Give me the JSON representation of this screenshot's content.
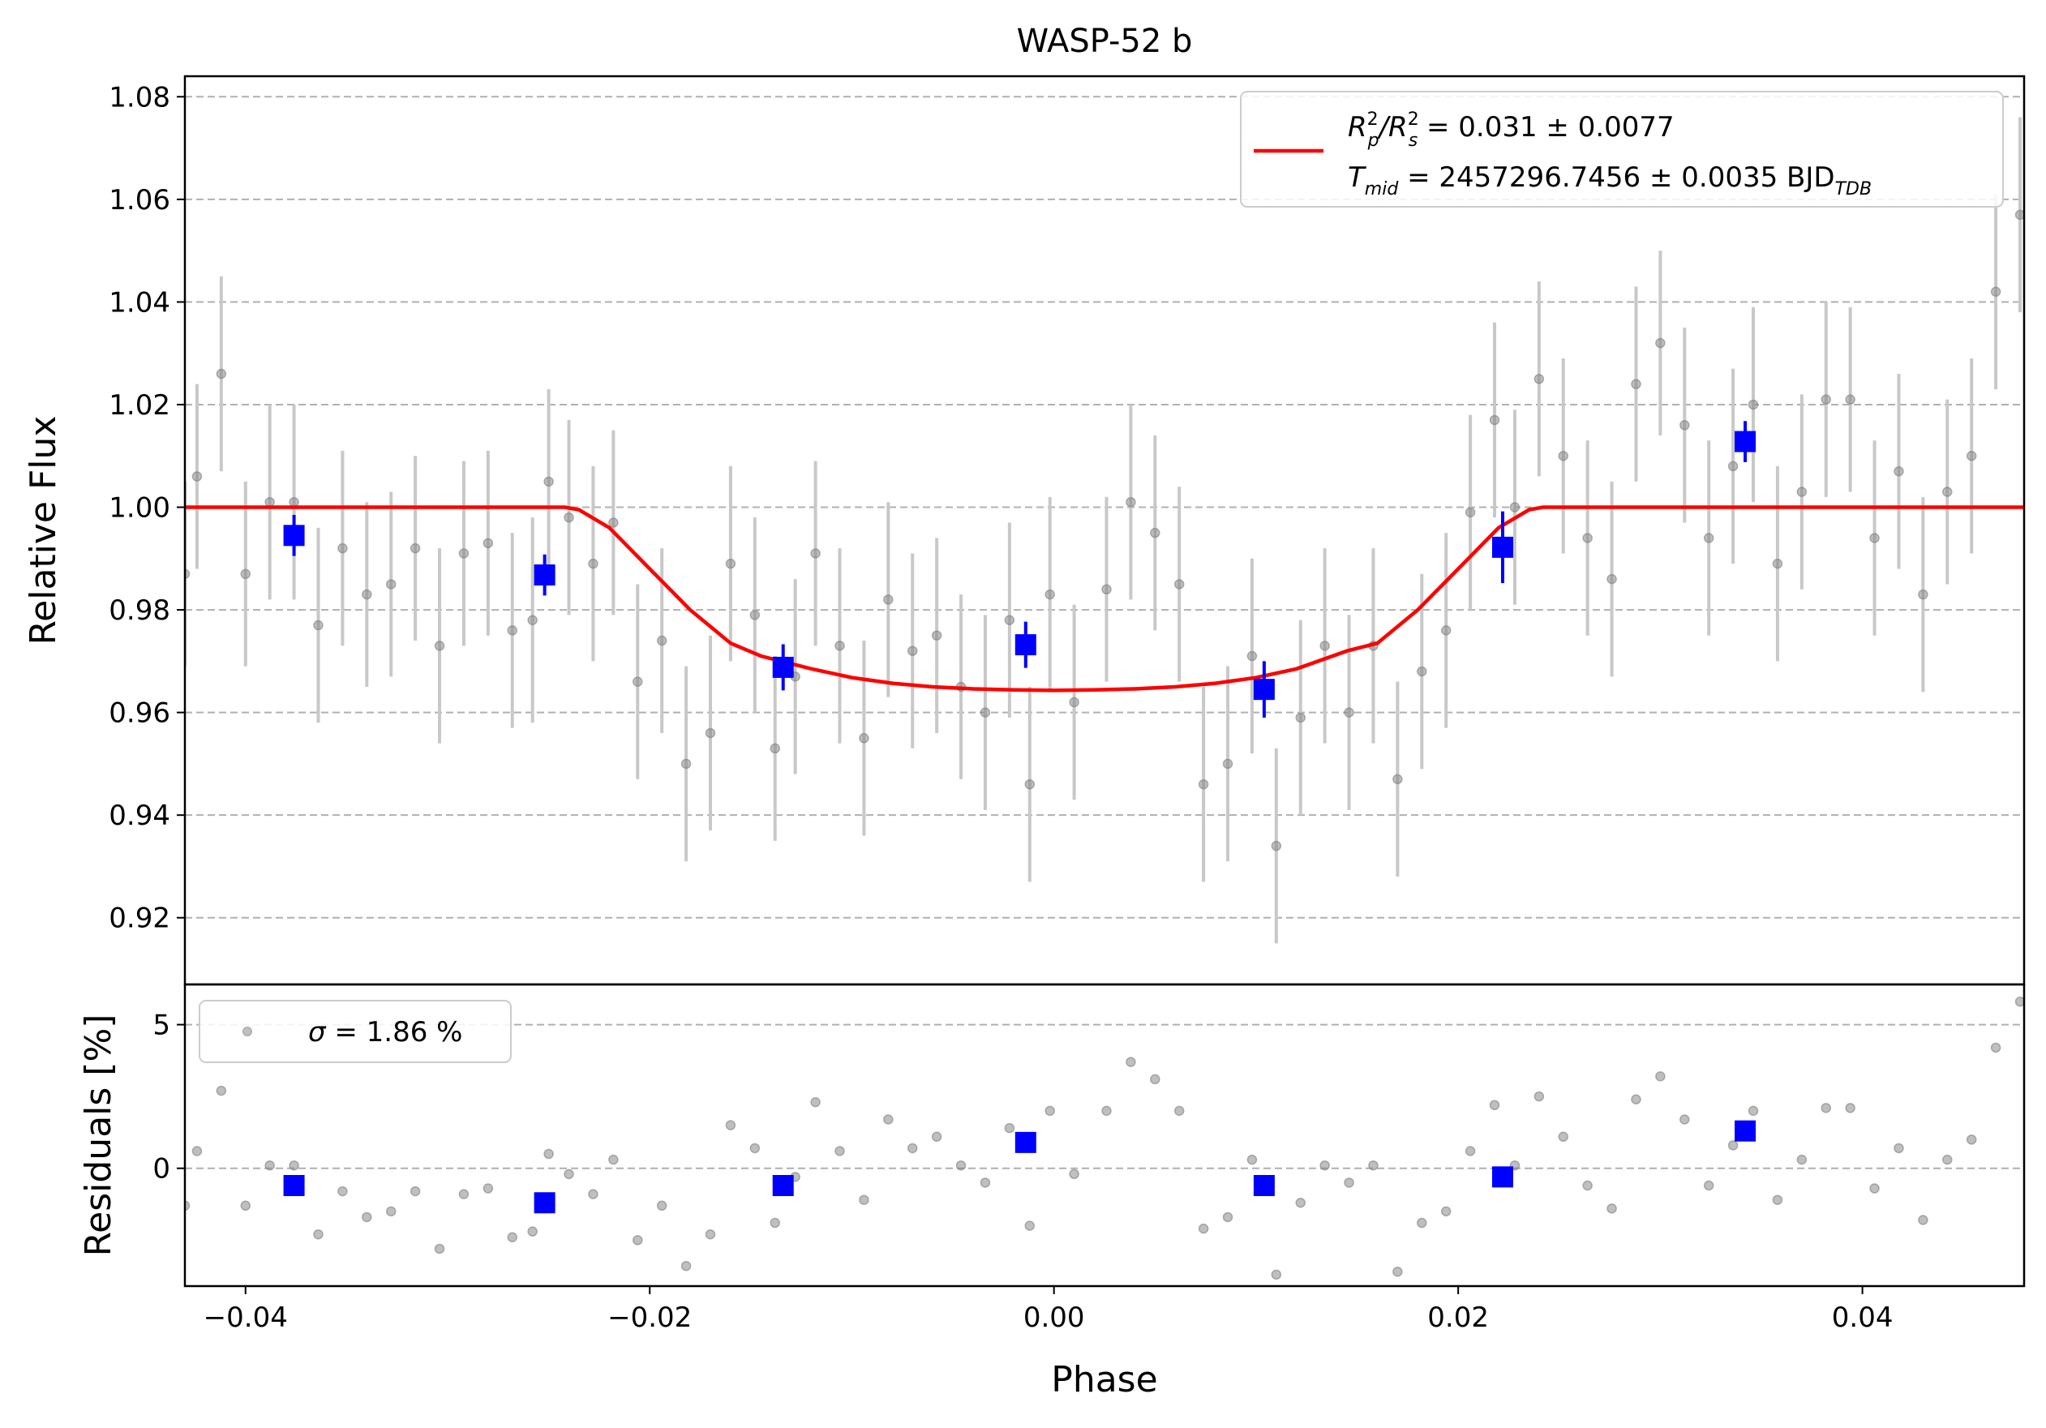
{
  "chart_data": [
    {
      "type": "scatter",
      "panel": "top",
      "title": "WASP-52 b",
      "xlabel": "",
      "ylabel": "Relative Flux",
      "xlim": [
        -0.043,
        0.048
      ],
      "ylim": [
        0.907,
        1.084
      ],
      "grid": "horizontal dashed",
      "yticks": [
        0.92,
        0.94,
        0.96,
        0.98,
        1.0,
        1.02,
        1.04,
        1.06,
        1.08
      ],
      "ytick_labels": [
        "0.92",
        "0.94",
        "0.96",
        "0.98",
        "1.00",
        "1.02",
        "1.04",
        "1.06",
        "1.08"
      ],
      "legend": {
        "placement": "top-right",
        "line1_main": "R",
        "line1_sub1": "p",
        "line1_sup1": "2",
        "line1_mid": "/R",
        "line1_sub2": "s",
        "line1_sup2": "2",
        "line1_rest": " = 0.031 ± 0.0077",
        "line2_main": "T",
        "line2_sub": "mid",
        "line2_rest": " = 2457296.7456 ± 0.0035 BJD",
        "line2_tail_sub": "TDB"
      },
      "colors": {
        "raw": "#808080",
        "errorbar": "#c8c8c8",
        "binned": "#0000ff",
        "model": "#ff0000"
      },
      "raw_points": {
        "x": [
          -0.043,
          -0.0424,
          -0.0412,
          -0.04,
          -0.0388,
          -0.0376,
          -0.0364,
          -0.0352,
          -0.034,
          -0.0328,
          -0.0316,
          -0.0304,
          -0.0292,
          -0.028,
          -0.0268,
          -0.0258,
          -0.025,
          -0.024,
          -0.0228,
          -0.0218,
          -0.0206,
          -0.0194,
          -0.0182,
          -0.017,
          -0.016,
          -0.0148,
          -0.0138,
          -0.0128,
          -0.0118,
          -0.0106,
          -0.0094,
          -0.0082,
          -0.007,
          -0.0058,
          -0.0046,
          -0.0034,
          -0.0022,
          -0.0012,
          -0.0002,
          0.001,
          0.0026,
          0.0038,
          0.005,
          0.0062,
          0.0074,
          0.0086,
          0.0098,
          0.011,
          0.0122,
          0.0134,
          0.0146,
          0.0158,
          0.017,
          0.0182,
          0.0194,
          0.0206,
          0.0218,
          0.0228,
          0.024,
          0.0252,
          0.0264,
          0.0276,
          0.0288,
          0.03,
          0.0312,
          0.0324,
          0.0336,
          0.0346,
          0.0358,
          0.037,
          0.0382,
          0.0394,
          0.0406,
          0.0418,
          0.043,
          0.0442,
          0.0454,
          0.0466,
          0.0478
        ],
        "y": [
          0.987,
          1.006,
          1.026,
          0.987,
          1.001,
          1.001,
          0.977,
          0.992,
          0.983,
          0.985,
          0.992,
          0.973,
          0.991,
          0.993,
          0.976,
          0.978,
          1.005,
          0.998,
          0.989,
          0.997,
          0.966,
          0.974,
          0.95,
          0.956,
          0.989,
          0.979,
          0.953,
          0.967,
          0.991,
          0.973,
          0.955,
          0.982,
          0.972,
          0.975,
          0.965,
          0.96,
          0.978,
          0.946,
          0.983,
          0.962,
          0.984,
          1.001,
          0.995,
          0.985,
          0.946,
          0.95,
          0.971,
          0.934,
          0.959,
          0.973,
          0.96,
          0.973,
          0.947,
          0.968,
          0.976,
          0.999,
          1.017,
          1.0,
          1.025,
          1.01,
          0.994,
          0.986,
          1.024,
          1.032,
          1.016,
          0.994,
          1.008,
          1.02,
          0.989,
          1.003,
          1.021,
          1.021,
          0.994,
          1.007,
          0.983,
          1.003,
          1.01,
          1.042,
          1.057
        ],
        "yerr": [
          0.018,
          0.018,
          0.019,
          0.018,
          0.019,
          0.019,
          0.019,
          0.019,
          0.018,
          0.018,
          0.018,
          0.019,
          0.018,
          0.018,
          0.019,
          0.02,
          0.018,
          0.019,
          0.019,
          0.018,
          0.019,
          0.018,
          0.019,
          0.019,
          0.019,
          0.019,
          0.018,
          0.019,
          0.018,
          0.019,
          0.019,
          0.019,
          0.019,
          0.019,
          0.018,
          0.019,
          0.019,
          0.019,
          0.019,
          0.019,
          0.018,
          0.019,
          0.019,
          0.019,
          0.019,
          0.019,
          0.019,
          0.019,
          0.019,
          0.019,
          0.019,
          0.019,
          0.019,
          0.019,
          0.019,
          0.019,
          0.019,
          0.019,
          0.019,
          0.019,
          0.019,
          0.019,
          0.019,
          0.018,
          0.019,
          0.019,
          0.019,
          0.019,
          0.019,
          0.019,
          0.019,
          0.018,
          0.019,
          0.019,
          0.019,
          0.018,
          0.019,
          0.019,
          0.019
        ]
      },
      "binned_points": {
        "x": [
          -0.0376,
          -0.0252,
          -0.0134,
          -0.0014,
          0.0104,
          0.0222,
          0.0342
        ],
        "y": [
          0.9945,
          0.9868,
          0.9688,
          0.9732,
          0.9645,
          0.9922,
          1.0128
        ],
        "yerr": [
          0.004,
          0.004,
          0.0045,
          0.0045,
          0.0055,
          0.007,
          0.004
        ]
      },
      "model": {
        "name": "",
        "x": [
          -0.043,
          -0.0242,
          -0.0235,
          -0.022,
          -0.02,
          -0.018,
          -0.016,
          -0.0145,
          -0.012,
          -0.01,
          -0.008,
          -0.006,
          -0.004,
          -0.002,
          0.0,
          0.002,
          0.004,
          0.006,
          0.008,
          0.01,
          0.012,
          0.0145,
          0.016,
          0.018,
          0.02,
          0.022,
          0.0235,
          0.0242,
          0.048
        ],
        "y": [
          1.0,
          1.0,
          0.9995,
          0.996,
          0.988,
          0.98,
          0.9735,
          0.971,
          0.9685,
          0.9668,
          0.9657,
          0.965,
          0.9646,
          0.9644,
          0.9643,
          0.9644,
          0.9646,
          0.965,
          0.9657,
          0.9668,
          0.9685,
          0.972,
          0.9735,
          0.98,
          0.988,
          0.996,
          0.9995,
          1.0,
          1.0
        ]
      }
    },
    {
      "type": "scatter",
      "panel": "bottom",
      "title": "",
      "xlabel": "Phase",
      "ylabel": "Residuals [%]",
      "xlim": [
        -0.043,
        0.048
      ],
      "ylim": [
        -4.1,
        6.4
      ],
      "grid": "horizontal dashed",
      "xticks": [
        -0.04,
        -0.02,
        0.0,
        0.02,
        0.04
      ],
      "xtick_labels": [
        "−0.04",
        "−0.02",
        "0.00",
        "0.02",
        "0.04"
      ],
      "yticks": [
        0,
        5
      ],
      "ytick_labels": [
        "0",
        "5"
      ],
      "legend": {
        "placement": "top-left",
        "sigma": "σ",
        "text": " = 1.86 %"
      },
      "raw_points": {
        "x": [
          -0.043,
          -0.0424,
          -0.0412,
          -0.04,
          -0.0388,
          -0.0376,
          -0.0364,
          -0.0352,
          -0.034,
          -0.0328,
          -0.0316,
          -0.0304,
          -0.0292,
          -0.028,
          -0.0268,
          -0.0258,
          -0.025,
          -0.024,
          -0.0228,
          -0.0218,
          -0.0206,
          -0.0194,
          -0.0182,
          -0.017,
          -0.016,
          -0.0148,
          -0.0138,
          -0.0128,
          -0.0118,
          -0.0106,
          -0.0094,
          -0.0082,
          -0.007,
          -0.0058,
          -0.0046,
          -0.0034,
          -0.0022,
          -0.0012,
          -0.0002,
          0.001,
          0.0026,
          0.0038,
          0.005,
          0.0062,
          0.0074,
          0.0086,
          0.0098,
          0.011,
          0.0122,
          0.0134,
          0.0146,
          0.0158,
          0.017,
          0.0182,
          0.0194,
          0.0206,
          0.0218,
          0.0228,
          0.024,
          0.0252,
          0.0264,
          0.0276,
          0.0288,
          0.03,
          0.0312,
          0.0324,
          0.0336,
          0.0346,
          0.0358,
          0.037,
          0.0382,
          0.0394,
          0.0406,
          0.0418,
          0.043,
          0.0442,
          0.0454,
          0.0466,
          0.0478
        ],
        "y": [
          -1.3,
          0.6,
          2.7,
          -1.3,
          0.1,
          0.1,
          -2.3,
          -0.8,
          -1.7,
          -1.5,
          -0.8,
          -2.8,
          -0.9,
          -0.7,
          -2.4,
          -2.2,
          0.5,
          -0.2,
          -0.9,
          0.3,
          -2.5,
          -1.3,
          -3.4,
          -2.3,
          1.5,
          0.7,
          -1.9,
          -0.3,
          2.3,
          0.6,
          -1.1,
          1.7,
          0.7,
          1.1,
          0.1,
          -0.5,
          1.4,
          -2.0,
          2.0,
          -0.2,
          2.0,
          3.7,
          3.1,
          2.0,
          -2.1,
          -1.7,
          0.3,
          -3.7,
          -1.2,
          0.1,
          -0.5,
          0.1,
          -3.6,
          -1.9,
          -1.5,
          0.6,
          2.2,
          0.1,
          2.5,
          1.1,
          -0.6,
          -1.4,
          2.4,
          3.2,
          1.7,
          -0.6,
          0.8,
          2.0,
          -1.1,
          0.3,
          2.1,
          2.1,
          -0.7,
          0.7,
          -1.8,
          0.3,
          1.0,
          4.2,
          5.8
        ]
      },
      "binned_points": {
        "x": [
          -0.0376,
          -0.0252,
          -0.0134,
          -0.0014,
          0.0104,
          0.0222,
          0.0342
        ],
        "y": [
          -0.6,
          -1.2,
          -0.6,
          0.9,
          -0.6,
          -0.3,
          1.3
        ]
      }
    }
  ]
}
